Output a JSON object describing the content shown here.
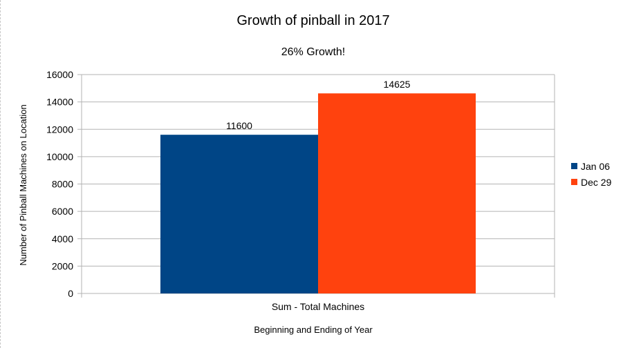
{
  "chart_data": {
    "type": "bar",
    "title": "Growth of pinball in 2017",
    "subtitle": "26% Growth!",
    "xlabel": "Beginning and Ending of Year",
    "ylabel": "Number of Pinball Machines on Location",
    "categories": [
      "Sum - Total Machines"
    ],
    "series": [
      {
        "name": "Jan 06",
        "values": [
          11600
        ],
        "color": "#004586"
      },
      {
        "name": "Dec 29",
        "values": [
          14625
        ],
        "color": "#ff420e"
      }
    ],
    "ylim": [
      0,
      16000
    ],
    "yticks": [
      0,
      2000,
      4000,
      6000,
      8000,
      10000,
      12000,
      14000,
      16000
    ],
    "grid": true,
    "legend_position": "right"
  }
}
